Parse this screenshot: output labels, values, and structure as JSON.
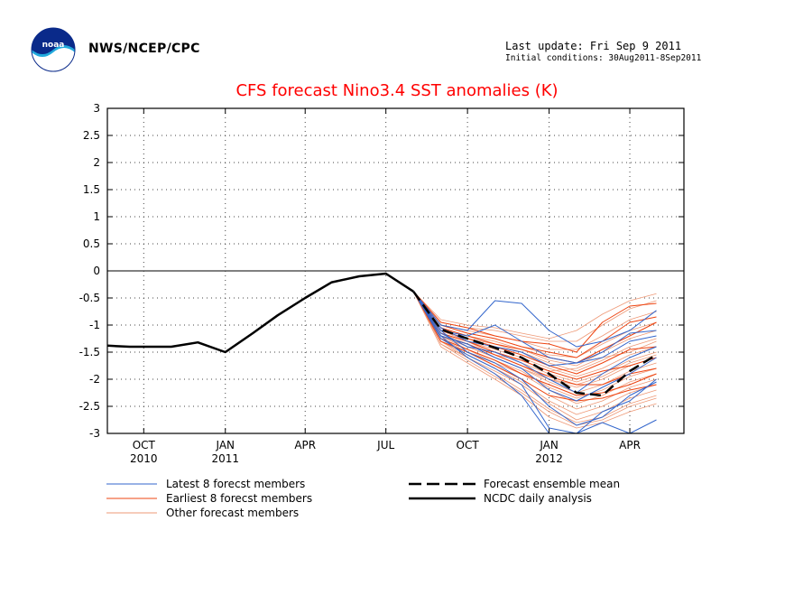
{
  "header": {
    "agency": "NWS/NCEP/CPC",
    "last_update": "Last update: Fri Sep  9 2011",
    "initial_conditions": "Initial conditions: 30Aug2011-8Sep2011"
  },
  "logo": {
    "text": "noaa"
  },
  "colors": {
    "latest": "#3366cc",
    "earliest": "#ee4411",
    "other": "#ee9977",
    "ensemble": "#000000",
    "analysis": "#000000",
    "title": "#ff0000"
  },
  "chart_data": {
    "type": "line",
    "title": "CFS forecast Nino3.4 SST anomalies (K)",
    "xlabel": "",
    "ylabel": "",
    "ylim": [
      -3,
      3
    ],
    "yticks": [
      3,
      2.5,
      2,
      1.5,
      1,
      0.5,
      0,
      -0.5,
      -1,
      -1.5,
      -2,
      -2.5,
      -3
    ],
    "xlim": [
      "2010-08-21",
      "2012-06-01"
    ],
    "xticks": [
      {
        "date": "2010-10-01",
        "label": "OCT",
        "year": "2010"
      },
      {
        "date": "2011-01-01",
        "label": "JAN",
        "year": "2011"
      },
      {
        "date": "2011-04-01",
        "label": "APR",
        "year": ""
      },
      {
        "date": "2011-07-01",
        "label": "JUL",
        "year": ""
      },
      {
        "date": "2011-10-01",
        "label": "OCT",
        "year": ""
      },
      {
        "date": "2012-01-01",
        "label": "JAN",
        "year": "2012"
      },
      {
        "date": "2012-04-01",
        "label": "APR",
        "year": ""
      }
    ],
    "grid": true,
    "zero_line": true,
    "legend": {
      "placement": "bottom",
      "latest": "Latest 8 forecst members",
      "earliest": "Earliest 8 forecst members",
      "other": "Other forecast members",
      "ensemble": "Forecast ensemble mean",
      "analysis": "NCDC daily analysis"
    },
    "forecast_dates": [
      "2011-08-01",
      "2011-09-01",
      "2011-10-01",
      "2011-11-01",
      "2011-12-01",
      "2012-01-01",
      "2012-02-01",
      "2012-03-01",
      "2012-04-01",
      "2012-05-01"
    ],
    "analysis": {
      "name": "NCDC daily analysis",
      "x": [
        "2010-08-21",
        "2010-09-15",
        "2010-11-01",
        "2010-12-01",
        "2011-01-01",
        "2011-02-01",
        "2011-03-01",
        "2011-04-01",
        "2011-05-01",
        "2011-06-01",
        "2011-07-01",
        "2011-08-01"
      ],
      "y": [
        -1.38,
        -1.4,
        -1.4,
        -1.32,
        -1.5,
        -1.15,
        -0.82,
        -0.5,
        -0.21,
        -0.1,
        -0.05,
        -0.38
      ]
    },
    "ensemble_mean": {
      "name": "Forecast ensemble mean",
      "y": [
        -0.38,
        -1.08,
        -1.25,
        -1.42,
        -1.6,
        -1.9,
        -2.25,
        -2.3,
        -1.85,
        -1.55
      ]
    },
    "latest_members": [
      [
        -0.38,
        -1.0,
        -1.1,
        -0.55,
        -0.6,
        -1.1,
        -1.4,
        -1.3,
        -1.1,
        -0.73
      ],
      [
        -0.38,
        -1.1,
        -1.2,
        -1.0,
        -1.3,
        -1.6,
        -1.7,
        -1.5,
        -1.15,
        -1.1
      ],
      [
        -0.38,
        -1.05,
        -1.3,
        -1.4,
        -1.5,
        -1.75,
        -1.7,
        -1.6,
        -1.3,
        -1.2
      ],
      [
        -0.38,
        -1.15,
        -1.4,
        -1.5,
        -1.7,
        -2.0,
        -2.25,
        -1.9,
        -1.6,
        -1.4
      ],
      [
        -0.38,
        -1.2,
        -1.35,
        -1.6,
        -1.8,
        -2.2,
        -2.4,
        -2.15,
        -1.9,
        -1.6
      ],
      [
        -0.38,
        -1.1,
        -1.5,
        -1.7,
        -2.0,
        -2.5,
        -2.85,
        -2.7,
        -2.3,
        -2.05
      ],
      [
        -0.38,
        -1.25,
        -1.55,
        -1.8,
        -2.1,
        -2.9,
        -3.0,
        -2.6,
        -2.4,
        -2.0
      ],
      [
        -0.38,
        -1.2,
        -1.6,
        -1.9,
        -2.3,
        -3.0,
        -3.0,
        -2.8,
        -3.0,
        -2.75
      ]
    ],
    "earliest_members": [
      [
        -0.38,
        -0.95,
        -1.05,
        -1.2,
        -1.3,
        -1.35,
        -1.5,
        -0.95,
        -0.65,
        -0.6
      ],
      [
        -0.38,
        -1.0,
        -1.15,
        -1.25,
        -1.4,
        -1.5,
        -1.6,
        -1.3,
        -0.95,
        -0.85
      ],
      [
        -0.38,
        -1.05,
        -1.2,
        -1.35,
        -1.45,
        -1.6,
        -1.7,
        -1.45,
        -1.2,
        -0.95
      ],
      [
        -0.38,
        -1.1,
        -1.25,
        -1.4,
        -1.55,
        -1.75,
        -1.9,
        -1.7,
        -1.45,
        -1.4
      ],
      [
        -0.38,
        -1.15,
        -1.3,
        -1.5,
        -1.65,
        -1.85,
        -2.0,
        -1.85,
        -1.75,
        -1.6
      ],
      [
        -0.38,
        -1.2,
        -1.35,
        -1.55,
        -1.75,
        -1.95,
        -2.1,
        -2.1,
        -1.9,
        -1.8
      ],
      [
        -0.38,
        -1.25,
        -1.45,
        -1.65,
        -1.9,
        -2.1,
        -2.3,
        -2.25,
        -2.1,
        -1.9
      ],
      [
        -0.38,
        -1.3,
        -1.5,
        -1.75,
        -2.0,
        -2.3,
        -2.4,
        -2.35,
        -2.2,
        -2.1
      ]
    ],
    "other_members": [
      [
        -0.38,
        -0.9,
        -1.0,
        -1.05,
        -1.15,
        -1.25,
        -1.1,
        -0.8,
        -0.55,
        -0.42
      ],
      [
        -0.38,
        -0.95,
        -1.05,
        -1.1,
        -1.2,
        -1.3,
        -1.3,
        -1.0,
        -0.7,
        -0.55
      ],
      [
        -0.38,
        -1.0,
        -1.1,
        -1.2,
        -1.3,
        -1.45,
        -1.45,
        -1.2,
        -0.9,
        -0.75
      ],
      [
        -0.38,
        -1.0,
        -1.15,
        -1.25,
        -1.4,
        -1.55,
        -1.6,
        -1.35,
        -1.1,
        -0.95
      ],
      [
        -0.38,
        -1.05,
        -1.2,
        -1.3,
        -1.45,
        -1.65,
        -1.75,
        -1.5,
        -1.25,
        -1.1
      ],
      [
        -0.38,
        -1.1,
        -1.25,
        -1.35,
        -1.5,
        -1.7,
        -1.85,
        -1.65,
        -1.4,
        -1.25
      ],
      [
        -0.38,
        -1.1,
        -1.3,
        -1.45,
        -1.6,
        -1.8,
        -1.95,
        -1.8,
        -1.55,
        -1.4
      ],
      [
        -0.38,
        -1.15,
        -1.3,
        -1.5,
        -1.7,
        -1.9,
        -2.05,
        -1.9,
        -1.65,
        -1.5
      ],
      [
        -0.38,
        -1.15,
        -1.35,
        -1.55,
        -1.75,
        -2.0,
        -2.15,
        -2.0,
        -1.75,
        -1.6
      ],
      [
        -0.38,
        -1.2,
        -1.4,
        -1.6,
        -1.8,
        -2.05,
        -2.25,
        -2.1,
        -1.85,
        -1.7
      ],
      [
        -0.38,
        -1.2,
        -1.45,
        -1.65,
        -1.85,
        -2.15,
        -2.35,
        -2.2,
        -1.95,
        -1.8
      ],
      [
        -0.38,
        -1.25,
        -1.45,
        -1.7,
        -1.9,
        -2.2,
        -2.45,
        -2.3,
        -2.05,
        -1.9
      ],
      [
        -0.38,
        -1.25,
        -1.5,
        -1.75,
        -2.0,
        -2.3,
        -2.55,
        -2.4,
        -2.15,
        -2.0
      ],
      [
        -0.38,
        -1.3,
        -1.55,
        -1.8,
        -2.05,
        -2.4,
        -2.65,
        -2.5,
        -2.25,
        -2.1
      ],
      [
        -0.38,
        -1.3,
        -1.6,
        -1.85,
        -2.1,
        -2.45,
        -2.75,
        -2.6,
        -2.35,
        -2.2
      ],
      [
        -0.38,
        -1.35,
        -1.6,
        -1.9,
        -2.2,
        -2.55,
        -2.8,
        -2.7,
        -2.45,
        -2.3
      ],
      [
        -0.38,
        -1.35,
        -1.65,
        -1.95,
        -2.25,
        -2.6,
        -2.85,
        -2.75,
        -2.5,
        -2.35
      ],
      [
        -0.38,
        -1.4,
        -1.7,
        -2.0,
        -2.3,
        -2.7,
        -2.9,
        -2.8,
        -2.6,
        -2.45
      ],
      [
        -0.38,
        -1.05,
        -1.3,
        -1.55,
        -1.65,
        -1.85,
        -1.8,
        -1.6,
        -1.5,
        -1.3
      ],
      [
        -0.38,
        -1.15,
        -1.4,
        -1.6,
        -1.8,
        -2.0,
        -2.1,
        -1.95,
        -1.7,
        -1.55
      ]
    ]
  }
}
